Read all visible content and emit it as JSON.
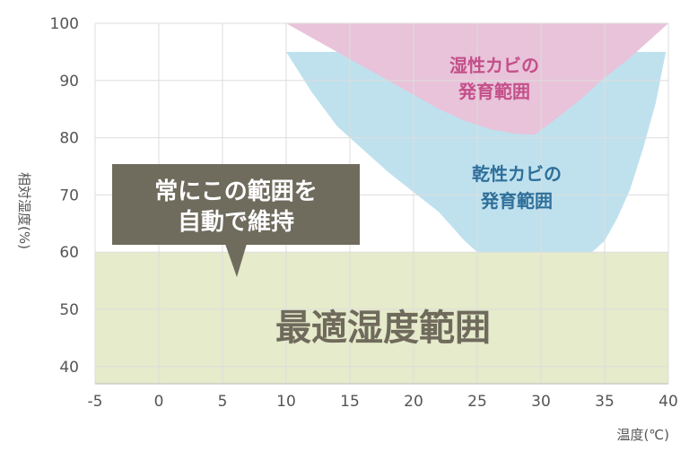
{
  "chart_data": {
    "type": "area",
    "xlabel": "温度(℃)",
    "ylabel": "相対湿度(%)",
    "xlim": [
      -5,
      40
    ],
    "ylim": [
      37,
      100
    ],
    "x_ticks": [
      "-5",
      "0",
      "5",
      "10",
      "15",
      "20",
      "25",
      "30",
      "35",
      "40"
    ],
    "y_ticks": [
      "100",
      "90",
      "80",
      "70",
      "60",
      "50",
      "40"
    ],
    "grid": true,
    "colors": {
      "optimal": "#e5ebcb",
      "dry_mold": "#bfe1ee",
      "wet_mold": "#e8c3d9",
      "callout": "#6f6b5d",
      "grid": "#dddddd"
    },
    "zones": [
      {
        "name": "最適湿度範囲",
        "x_range": [
          -5,
          40
        ],
        "y_range": [
          37,
          60
        ]
      },
      {
        "name": "乾性カビの発育範囲",
        "boundary": [
          [
            10,
            95
          ],
          [
            12,
            88
          ],
          [
            14,
            82
          ],
          [
            16,
            78
          ],
          [
            18,
            74
          ],
          [
            20,
            70.5
          ],
          [
            22,
            67
          ],
          [
            24,
            62
          ],
          [
            25,
            60
          ],
          [
            34,
            60
          ],
          [
            35,
            62
          ],
          [
            36,
            66
          ],
          [
            37,
            71
          ],
          [
            38,
            78
          ],
          [
            39,
            86
          ],
          [
            39.8,
            95
          ]
        ]
      },
      {
        "name": "湿性カビの発育範囲",
        "boundary": [
          [
            10,
            100
          ],
          [
            12,
            97.5
          ],
          [
            14,
            95
          ],
          [
            16,
            92.5
          ],
          [
            18,
            90
          ],
          [
            20,
            87.5
          ],
          [
            22,
            85
          ],
          [
            24,
            83
          ],
          [
            26,
            81.5
          ],
          [
            28,
            80.7
          ],
          [
            29.5,
            80.5
          ],
          [
            31,
            83
          ],
          [
            33,
            86.5
          ],
          [
            35,
            90.5
          ],
          [
            37,
            94
          ],
          [
            40,
            100
          ]
        ]
      }
    ],
    "labels": {
      "optimal": "最適湿度範囲",
      "dry_line1": "乾性カビの",
      "dry_line2": "発育範囲",
      "wet_line1": "湿性カビの",
      "wet_line2": "発育範囲"
    },
    "callout": {
      "line1": "常にこの範囲を",
      "line2": "自動で維持"
    }
  }
}
